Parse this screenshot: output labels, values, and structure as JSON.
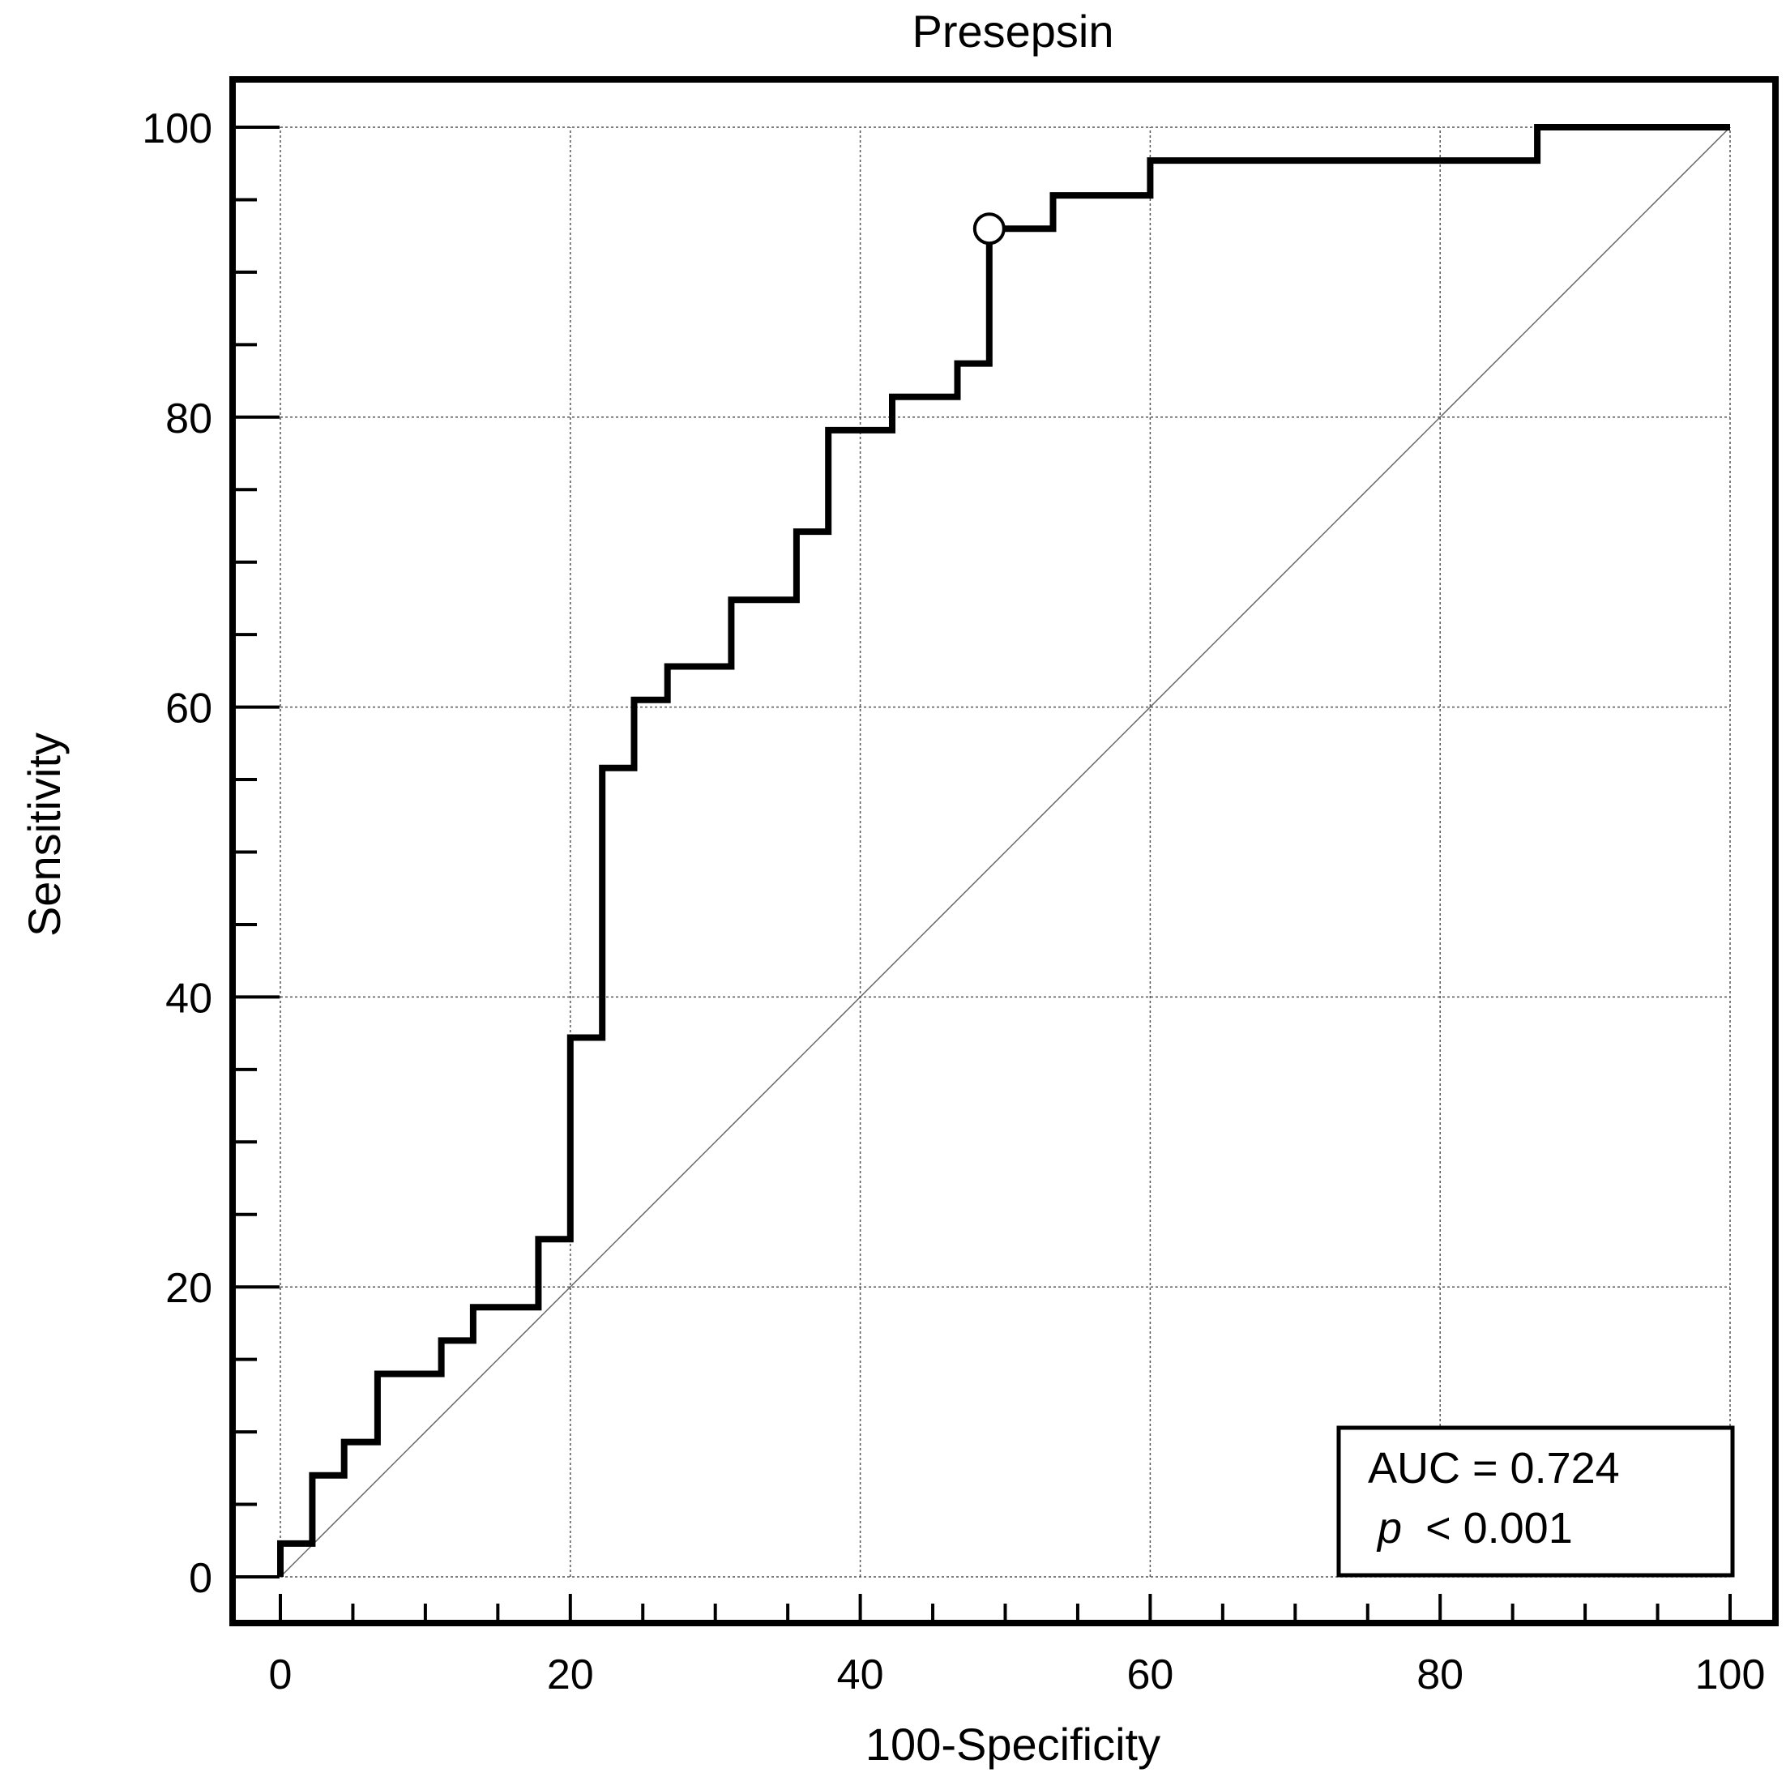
{
  "chart_data": {
    "type": "line",
    "title": "Presepsin",
    "xlabel": "100-Specificity",
    "ylabel": "Sensitivity",
    "xlim": [
      0,
      100
    ],
    "ylim": [
      0,
      100
    ],
    "xticks": [
      0,
      20,
      40,
      60,
      80,
      100
    ],
    "yticks": [
      0,
      20,
      40,
      60,
      80,
      100
    ],
    "grid": true,
    "series": [
      {
        "name": "Presepsin ROC",
        "style": "step",
        "x": [
          0,
          0,
          2.2,
          2.2,
          4.4,
          4.4,
          6.7,
          6.7,
          11.1,
          11.1,
          13.3,
          13.3,
          17.8,
          17.8,
          20.0,
          20.0,
          22.2,
          22.2,
          24.4,
          24.4,
          26.7,
          26.7,
          31.1,
          31.1,
          35.6,
          35.6,
          37.8,
          37.8,
          42.2,
          42.2,
          46.7,
          46.7,
          48.9,
          48.9,
          53.3,
          53.3,
          60.0,
          60.0,
          86.7,
          86.7,
          100
        ],
        "y": [
          0,
          2.3,
          2.3,
          7.0,
          7.0,
          9.3,
          9.3,
          14.0,
          14.0,
          16.3,
          16.3,
          18.6,
          18.6,
          23.3,
          23.3,
          37.2,
          37.2,
          55.8,
          55.8,
          60.5,
          60.5,
          62.8,
          62.8,
          67.4,
          67.4,
          72.1,
          72.1,
          79.1,
          79.1,
          81.4,
          81.4,
          83.7,
          83.7,
          93.0,
          93.0,
          95.3,
          95.3,
          97.7,
          97.7,
          100,
          100
        ]
      },
      {
        "name": "Reference line",
        "style": "diagonal",
        "x": [
          0,
          100
        ],
        "y": [
          0,
          100
        ]
      }
    ],
    "marker": {
      "name": "Optimal cut-off",
      "x": 48.9,
      "y": 93.0
    },
    "annotation": {
      "location": "bottom-right",
      "auc_text": "AUC = 0.724",
      "p_symbol": "p",
      "p_text": "< 0.001"
    }
  }
}
